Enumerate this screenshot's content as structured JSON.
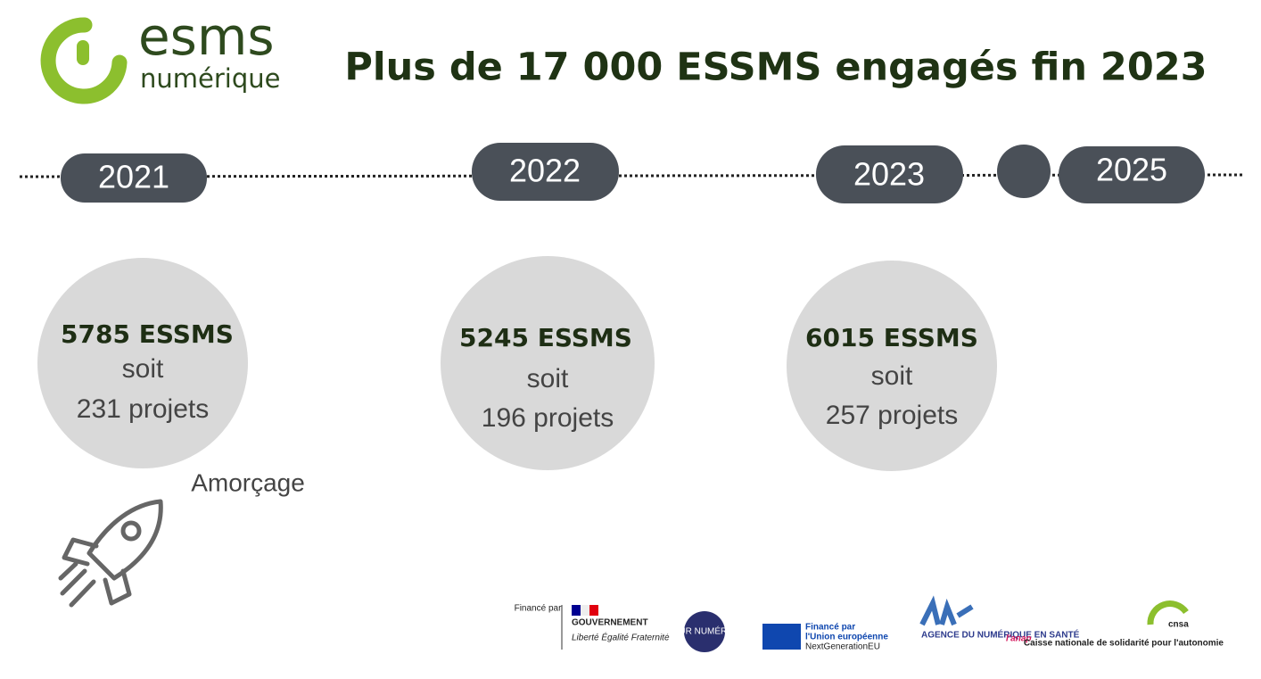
{
  "logo": {
    "line1": "esms",
    "line2": "numérique"
  },
  "title": "Plus de 17 000 ESSMS engagés fin 2023",
  "timeline": [
    {
      "year": "2021",
      "essms": "5785 ESSMS",
      "soit": "soit",
      "projets": "231 projets"
    },
    {
      "year": "2022",
      "essms": "5245 ESSMS",
      "soit": "soit",
      "projets": "196 projets"
    },
    {
      "year": "2023",
      "essms": "6015 ESSMS",
      "soit": "soit",
      "projets": "257 projets"
    },
    {
      "year": "2025"
    }
  ],
  "phase": "Amorçage",
  "sponsors": {
    "finance_par": "Financé par",
    "gouvernement": "GOUVERNEMENT",
    "devise": "Liberté Égalité Fraternité",
    "segur": "SÉGUR NUMÉRIQUE",
    "ue_line1": "Financé par",
    "ue_line2": "l'Union européenne",
    "ue_line3": "NextGenerationEU",
    "ans": "AGENCE DU NUMÉRIQUE EN SANTÉ",
    "anap": "l'anap",
    "cnsa": "cnsa",
    "cnsa_sub": "Caisse nationale de solidarité pour l'autonomie"
  }
}
